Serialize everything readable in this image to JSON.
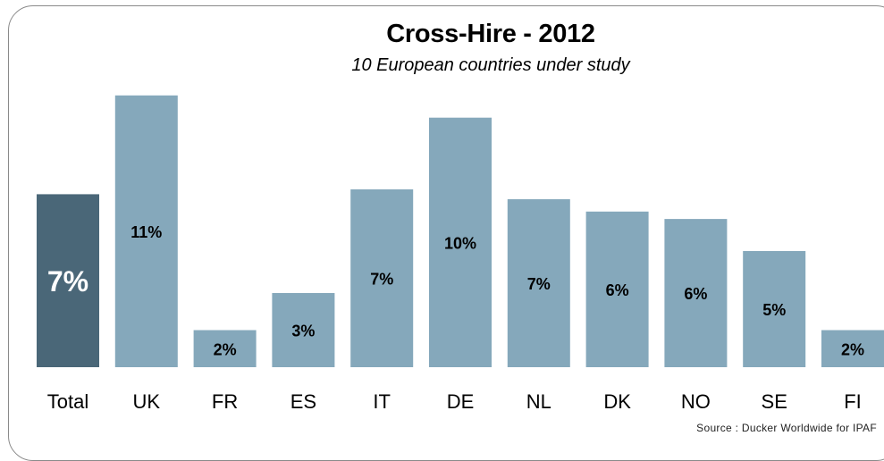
{
  "chart_data": {
    "type": "bar",
    "title": "Cross-Hire - 2012",
    "subtitle": "10 European countries under study",
    "categories": [
      "Total",
      "UK",
      "FR",
      "ES",
      "IT",
      "DE",
      "NL",
      "DK",
      "NO",
      "SE",
      "FI"
    ],
    "values": [
      7.0,
      11.0,
      1.5,
      3.0,
      7.2,
      10.1,
      6.8,
      6.3,
      6.0,
      4.7,
      1.5
    ],
    "data_labels": [
      "7%",
      "11%",
      "2%",
      "3%",
      "7%",
      "10%",
      "7%",
      "6%",
      "6%",
      "5%",
      "2%"
    ],
    "ylim": [
      0,
      11.5
    ],
    "grid": false,
    "colors": {
      "highlight": "#4a6778",
      "bar": "#85a8bb",
      "highlight_label": "#ffffff",
      "bar_label": "#000000"
    },
    "source": "Source : Ducker Worldwide for IPAF"
  }
}
